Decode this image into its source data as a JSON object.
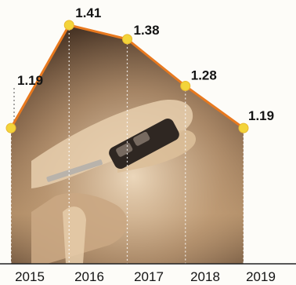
{
  "chart_data": {
    "type": "area",
    "x": [
      "2015",
      "2016",
      "2017",
      "2018",
      "2019"
    ],
    "values": [
      1.19,
      1.41,
      1.38,
      1.28,
      1.19
    ],
    "data_labels": [
      "1.19",
      "1.41",
      "1.38",
      "1.28",
      "1.19"
    ],
    "title": "",
    "xlabel": "",
    "ylabel": "",
    "grid": false,
    "legend": "none",
    "background_image": "hands-holding-car-key-photo",
    "colors": {
      "line": "#e8791f",
      "marker": "#f3d43a",
      "fill_photo_dark": "#4a3526",
      "fill_photo_light": "#d9c3a4",
      "dotted_lines": "#ffffff",
      "label_text": "#141414",
      "axis": "#222222"
    }
  }
}
